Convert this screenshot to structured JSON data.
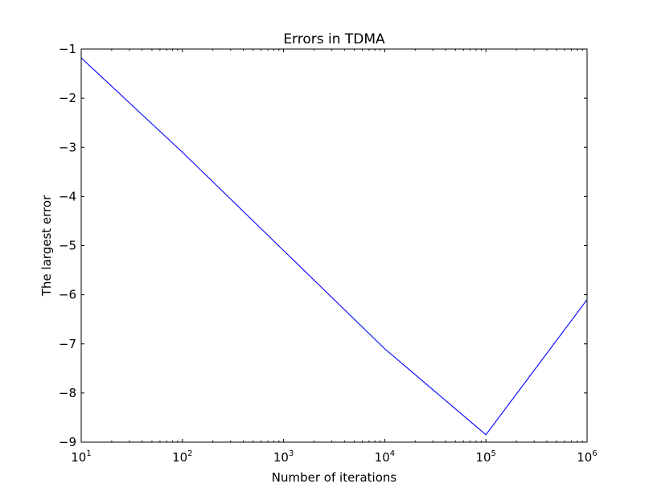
{
  "chart_data": {
    "type": "line",
    "title": "Errors in TDMA",
    "xlabel": "Number of iterations",
    "ylabel": "The largest error",
    "xscale": "log",
    "xlim": [
      10,
      1000000
    ],
    "ylim": [
      -9,
      -1
    ],
    "grid": false,
    "legend": "none",
    "x_ticks": [
      {
        "value": 10,
        "base": "10",
        "exp": "1"
      },
      {
        "value": 100,
        "base": "10",
        "exp": "2"
      },
      {
        "value": 1000,
        "base": "10",
        "exp": "3"
      },
      {
        "value": 10000,
        "base": "10",
        "exp": "4"
      },
      {
        "value": 100000,
        "base": "10",
        "exp": "5"
      },
      {
        "value": 1000000,
        "base": "10",
        "exp": "6"
      }
    ],
    "y_ticks": [
      {
        "value": -1,
        "label": "−1"
      },
      {
        "value": -2,
        "label": "−2"
      },
      {
        "value": -3,
        "label": "−3"
      },
      {
        "value": -4,
        "label": "−4"
      },
      {
        "value": -5,
        "label": "−5"
      },
      {
        "value": -6,
        "label": "−6"
      },
      {
        "value": -7,
        "label": "−7"
      },
      {
        "value": -8,
        "label": "−8"
      },
      {
        "value": -9,
        "label": "−9"
      }
    ],
    "series": [
      {
        "color": "#0000ff",
        "x": [
          10,
          100,
          1000,
          10000,
          100000,
          1000000
        ],
        "y": [
          -1.18,
          -3.1,
          -5.1,
          -7.1,
          -8.85,
          -6.1
        ]
      }
    ]
  }
}
